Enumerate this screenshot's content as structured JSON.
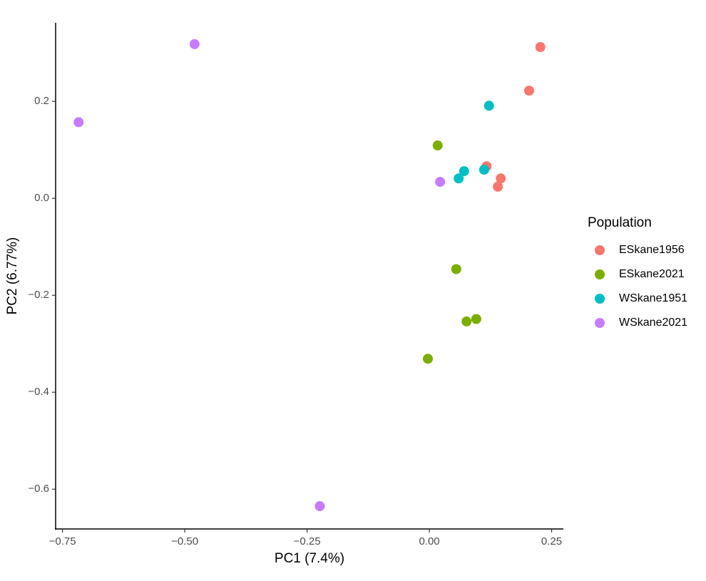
{
  "chart_data": {
    "type": "scatter",
    "x_label": "PC1 (7.4%)",
    "y_label": "PC2 (6.77%)",
    "legend_title": "Population",
    "legend_position": "right",
    "xlim": [
      -0.764,
      0.274
    ],
    "xticks": [
      {
        "value": -0.75,
        "label": "−0.75"
      },
      {
        "value": -0.5,
        "label": "−0.50"
      },
      {
        "value": -0.25,
        "label": "−0.25"
      },
      {
        "value": 0,
        "label": "0.00"
      },
      0.25
    ],
    "ylim": [
      -0.682,
      0.362
    ],
    "yticks": [
      {
        "value": -0.6,
        "label": "−0.6"
      },
      {
        "value": -0.4,
        "label": "−0.4"
      },
      {
        "value": -0.2,
        "label": "−0.2"
      },
      {
        "value": 0,
        "label": "0.0"
      },
      0.2
    ],
    "grid": false,
    "series": [
      {
        "name": "ESkane1956",
        "color": "#F8766D",
        "x": [
          0.227,
          0.204,
          0.117,
          0.146,
          0.14
        ],
        "values": [
          0.312,
          0.222,
          0.066,
          0.041,
          0.024
        ]
      },
      {
        "name": "ESkane2021",
        "color": "#7CAE00",
        "x": [
          0.017,
          0.055,
          0.096,
          0.076,
          -0.003
        ],
        "values": [
          0.109,
          -0.146,
          -0.249,
          -0.254,
          -0.331
        ]
      },
      {
        "name": "WSkane1951",
        "color": "#00BFC4",
        "x": [
          0.122,
          0.071,
          0.06,
          0.112
        ],
        "values": [
          0.191,
          0.056,
          0.041,
          0.059
        ]
      },
      {
        "name": "WSkane2021",
        "color": "#C77CFF",
        "x": [
          -0.48,
          -0.717,
          0.022,
          -0.224
        ],
        "values": [
          0.318,
          0.157,
          0.034,
          -0.635
        ]
      }
    ]
  }
}
